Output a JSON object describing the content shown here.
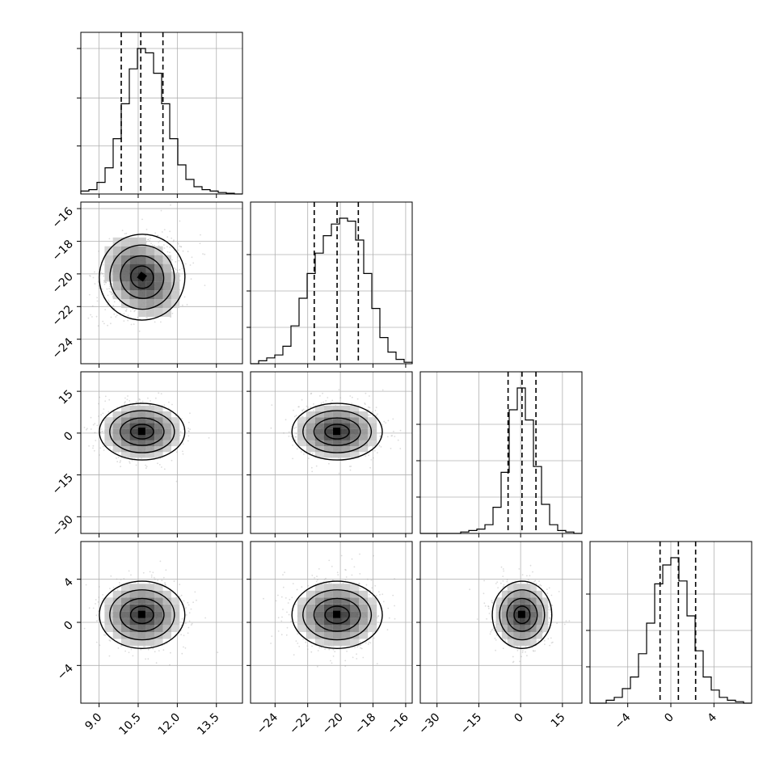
{
  "chart_data": {
    "type": "corner",
    "title": "",
    "params": [
      {
        "range": [
          8.3,
          14.5
        ],
        "ticks": [
          9.0,
          10.5,
          12.0,
          13.5
        ],
        "tick_labels": [
          "9.0",
          "10.5",
          "12.0",
          "13.5"
        ],
        "quantiles": [
          9.85,
          10.6,
          11.45
        ],
        "mean": 10.65,
        "sd": 0.8
      },
      {
        "range": [
          -25.5,
          -15.6
        ],
        "ticks": [
          -24,
          -22,
          -20,
          -18,
          -16
        ],
        "tick_labels": [
          "−24",
          "−22",
          "−20",
          "−18",
          "−16"
        ],
        "quantiles": [
          -21.6,
          -20.2,
          -18.9
        ],
        "mean": -20.2,
        "sd": 1.35
      },
      {
        "range": [
          -36,
          22
        ],
        "ticks": [
          -30,
          -15,
          0,
          15
        ],
        "tick_labels": [
          "−30",
          "−15",
          "0",
          "15"
        ],
        "quantiles": [
          -4.5,
          0.5,
          5.5
        ],
        "mean": 0.5,
        "sd": 5.2
      },
      {
        "range": [
          -7.5,
          7.5
        ],
        "ticks": [
          -4,
          0,
          4
        ],
        "tick_labels": [
          "−4",
          "0",
          "4"
        ],
        "quantiles": [
          -1.0,
          0.7,
          2.3
        ],
        "mean": 0.7,
        "sd": 1.6
      }
    ],
    "diagonal_histograms": [
      [
        0.02,
        0.03,
        0.08,
        0.18,
        0.38,
        0.62,
        0.86,
        1.0,
        0.97,
        0.83,
        0.62,
        0.38,
        0.2,
        0.1,
        0.05,
        0.03,
        0.02,
        0.01,
        0.005,
        0.0
      ],
      [
        0.0,
        0.02,
        0.04,
        0.06,
        0.12,
        0.26,
        0.45,
        0.62,
        0.76,
        0.88,
        0.96,
        1.0,
        0.98,
        0.85,
        0.62,
        0.38,
        0.18,
        0.08,
        0.03,
        0.01
      ],
      [
        0.0,
        0.0,
        0.0,
        0.0,
        0.0,
        0.01,
        0.02,
        0.03,
        0.06,
        0.18,
        0.42,
        0.85,
        1.0,
        0.78,
        0.46,
        0.2,
        0.06,
        0.02,
        0.01,
        0.0
      ],
      [
        0.0,
        0.0,
        0.02,
        0.04,
        0.1,
        0.18,
        0.34,
        0.55,
        0.82,
        0.95,
        1.0,
        0.84,
        0.6,
        0.36,
        0.18,
        0.09,
        0.04,
        0.02,
        0.01,
        0.0
      ]
    ],
    "yaxis_ticks_row0": [
      0.33,
      0.66,
      1.0
    ],
    "grid": true,
    "quantile_lines": "dashed"
  }
}
